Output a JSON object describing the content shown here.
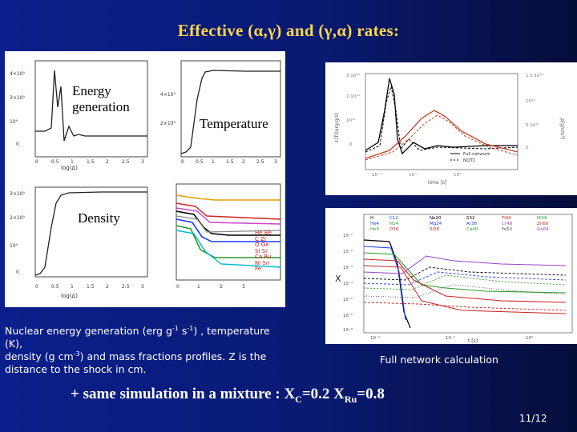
{
  "slide": {
    "title": "Effective (α,γ)  and (γ,α) rates:",
    "page_number": "11/12"
  },
  "left_panel": {
    "labels": {
      "energy_line1": "Energy",
      "energy_line2": "generation",
      "temperature": "Temperature",
      "density": "Density"
    },
    "x_tick_labels": [
      "0",
      "0.5",
      "1",
      "1.5",
      "2",
      "2.5",
      "3"
    ],
    "x_axis_label": "log(Δ)",
    "legend_items": [
      "He",
      "Be",
      "C",
      "O",
      "Si",
      "Ca",
      "Ni",
      "Fe",
      "Zr",
      "Ge",
      "Sr",
      "Ru",
      "Sn"
    ]
  },
  "top_right_plot": {
    "x_axis_label": "time [s]",
    "y_axis_label": "ε(T)(erg/g/s)",
    "y2_axis_label": "ρ[g/cm³]",
    "legend": [
      "Full network",
      "NQT1"
    ]
  },
  "bottom_right_plot": {
    "y_axis_label": "X",
    "x_axis_label": "t [s]",
    "legend": [
      "H",
      "He4",
      "He3",
      "C12",
      "N14",
      "O16",
      "Ne20",
      "Mg24",
      "Si28",
      "S32",
      "Ar36",
      "Ca40",
      "Ti44",
      "Cr48",
      "Fe52",
      "Ni56",
      "Zn60",
      "Ge64"
    ]
  },
  "captions": {
    "left": {
      "part1": "Nuclear energy generation (erg g",
      "sup1": "-1",
      "part2": " s",
      "sup2": "-1",
      "part3": ") , temperature (K),",
      "part4": "density (g cm",
      "sup3": "-3",
      "part5": ")  and mass fractions profiles. Z is the distance to the shock in cm."
    },
    "right": "Full network calculation"
  },
  "bottom_line": {
    "prefix": "+ same simulation in a mixture : X",
    "sub1": "C",
    "mid": "=0.2 X",
    "sub2": "Ru",
    "suffix": "=0.8"
  },
  "colors": {
    "title": "#ffd54a",
    "background": "#0a1f8c"
  }
}
